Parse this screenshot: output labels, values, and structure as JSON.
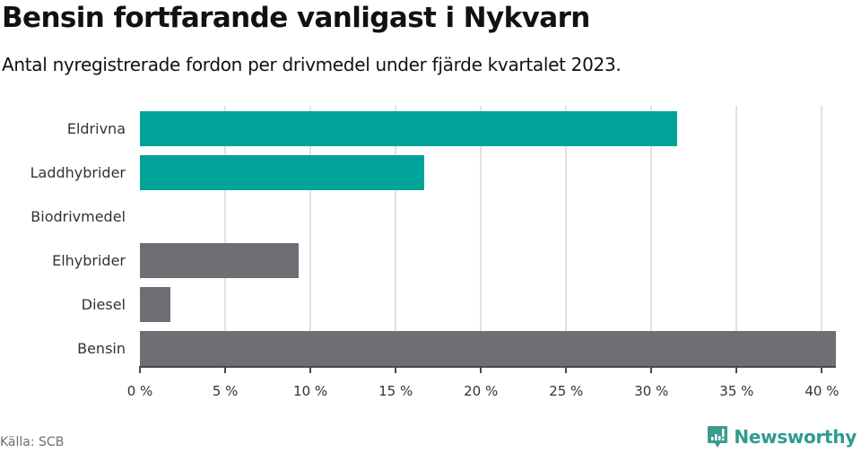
{
  "header": {
    "title": "Bensin fortfarande vanligast i Nykvarn",
    "subtitle": "Antal nyregistrerade fordon per drivmedel under fjärde kvartalet 2023."
  },
  "footer": {
    "source": "Källa: SCB",
    "brand": "Newsworthy",
    "brand_color": "#2e9c8d"
  },
  "colors": {
    "highlight": "#00a398",
    "default": "#6f6e74",
    "grid": "#e1e1e1",
    "axis": "#4a4a4a"
  },
  "chart_data": {
    "type": "bar",
    "orientation": "horizontal",
    "title": "Bensin fortfarande vanligast i Nykvarn",
    "subtitle": "Antal nyregistrerade fordon per drivmedel under fjärde kvartalet 2023.",
    "categories": [
      "Eldrivna",
      "Laddhybrider",
      "Biodrivmedel",
      "Elhybrider",
      "Diesel",
      "Bensin"
    ],
    "values": [
      31.5,
      16.7,
      0,
      9.3,
      1.8,
      40.8
    ],
    "colors": [
      "#00a398",
      "#00a398",
      "#00a398",
      "#6f6e74",
      "#6f6e74",
      "#6f6e74"
    ],
    "unit": "%",
    "xlabel": "",
    "ylabel": "",
    "xlim": [
      0,
      40.8
    ],
    "x_ticks": [
      0,
      5,
      10,
      15,
      20,
      25,
      30,
      35,
      40
    ],
    "x_tick_labels": [
      "0 %",
      "5 %",
      "10 %",
      "15 %",
      "20 %",
      "25 %",
      "30 %",
      "35 %",
      "40 %"
    ],
    "grid": "vertical",
    "legend": null,
    "source": "Källa: SCB"
  }
}
